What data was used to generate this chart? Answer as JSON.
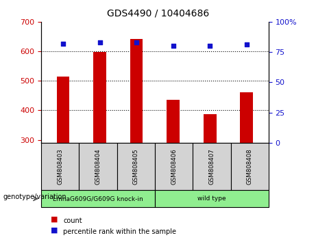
{
  "title": "GDS4490 / 10404686",
  "samples": [
    "GSM808403",
    "GSM808404",
    "GSM808405",
    "GSM808406",
    "GSM808407",
    "GSM808408"
  ],
  "counts": [
    515,
    597,
    642,
    435,
    387,
    462
  ],
  "percentiles": [
    82,
    83,
    83,
    80,
    80,
    81
  ],
  "ylim_left": [
    290,
    700
  ],
  "ylim_right": [
    0,
    100
  ],
  "yticks_left": [
    300,
    400,
    500,
    600,
    700
  ],
  "yticks_right": [
    0,
    25,
    50,
    75,
    100
  ],
  "bar_color": "#cc0000",
  "dot_color": "#1111cc",
  "groups": [
    {
      "label": "LmnaG609G/G609G knock-in",
      "indices": [
        0,
        1,
        2
      ],
      "color": "#90ee90"
    },
    {
      "label": "wild type",
      "indices": [
        3,
        4,
        5
      ],
      "color": "#90ee90"
    }
  ],
  "group_label_prefix": "genotype/variation",
  "legend_count": "count",
  "legend_percentile": "percentile rank within the sample",
  "sample_box_color": "#d3d3d3",
  "title_fontsize": 10,
  "tick_fontsize": 8,
  "bar_width": 0.35
}
